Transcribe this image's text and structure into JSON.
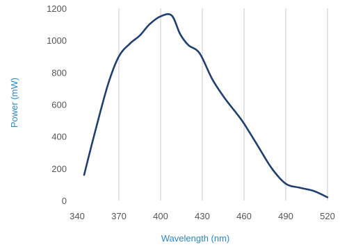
{
  "chart_data": {
    "type": "line",
    "title": "",
    "xlabel": "Wavelength (nm)",
    "ylabel": "Power (mW)",
    "xlim": [
      340,
      520
    ],
    "ylim": [
      0,
      1200
    ],
    "x_ticks": [
      340,
      370,
      400,
      430,
      460,
      490,
      520
    ],
    "y_ticks": [
      0,
      200,
      400,
      600,
      800,
      1000,
      1200
    ],
    "grid": "vertical",
    "series": [
      {
        "color": "#1f3f73",
        "x": [
          345,
          352,
          362,
          370,
          378,
          385,
          392,
          400,
          408,
          414,
          420,
          428,
          437,
          446,
          455,
          460,
          470,
          480,
          490,
          500,
          510,
          520
        ],
        "y": [
          160,
          400,
          720,
          900,
          980,
          1030,
          1100,
          1150,
          1155,
          1040,
          970,
          920,
          760,
          640,
          540,
          480,
          340,
          200,
          105,
          80,
          60,
          20
        ]
      }
    ],
    "colors": {
      "axis_title": "#2a86c8",
      "grid": "#c8c8c8",
      "line": "#1f3f73",
      "tick_text": "#555555"
    }
  }
}
